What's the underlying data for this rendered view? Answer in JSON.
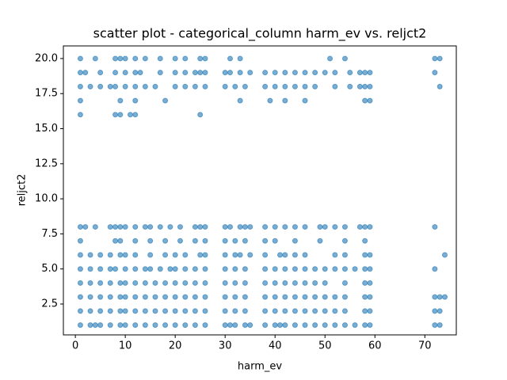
{
  "chart_data": {
    "type": "scatter",
    "title": "scatter plot - categorical_column harm_ev vs. reljct2",
    "xlabel": "harm_ev",
    "ylabel": "reljct2",
    "color": "#1f77b4",
    "xlim": [
      -2.4,
      76.3
    ],
    "ylim": [
      0.3,
      20.9
    ],
    "xticks": [
      0,
      10,
      20,
      30,
      40,
      50,
      60,
      70
    ],
    "yticks": [
      2.5,
      {
        "value": 5,
        "label": "5.0"
      },
      7.5,
      {
        "value": 10,
        "label": "10.0"
      },
      12.5,
      {
        "value": 15,
        "label": "15.0"
      },
      17.5,
      {
        "value": 20,
        "label": "20.0"
      }
    ],
    "x": [
      1,
      4,
      8,
      9,
      10,
      12,
      14,
      17,
      20,
      22,
      25,
      26,
      31,
      33,
      51,
      54,
      72,
      73,
      1,
      2,
      5,
      8,
      10,
      12,
      13,
      17,
      20,
      22,
      24,
      25,
      26,
      30,
      31,
      33,
      35,
      38,
      40,
      42,
      44,
      46,
      48,
      50,
      52,
      55,
      57,
      58,
      59,
      72,
      1,
      3,
      5,
      7,
      8,
      10,
      12,
      14,
      16,
      20,
      22,
      24,
      26,
      30,
      32,
      34,
      38,
      40,
      42,
      44,
      46,
      48,
      52,
      55,
      57,
      58,
      59,
      73,
      1,
      9,
      12,
      18,
      33,
      39,
      42,
      46,
      58,
      59,
      1,
      8,
      9,
      11,
      12,
      25,
      1,
      2,
      4,
      7,
      8,
      9,
      10,
      12,
      14,
      15,
      17,
      19,
      21,
      24,
      25,
      26,
      30,
      31,
      33,
      34,
      35,
      38,
      40,
      42,
      44,
      46,
      49,
      50,
      52,
      54,
      57,
      58,
      59,
      72,
      1,
      8,
      9,
      12,
      15,
      18,
      21,
      24,
      26,
      30,
      32,
      34,
      38,
      40,
      44,
      49,
      54,
      58,
      1,
      3,
      5,
      7,
      9,
      10,
      12,
      15,
      18,
      20,
      22,
      25,
      26,
      30,
      32,
      33,
      35,
      38,
      41,
      42,
      44,
      46,
      52,
      54,
      58,
      59,
      74,
      1,
      3,
      5,
      7,
      8,
      10,
      12,
      14,
      15,
      17,
      19,
      20,
      22,
      24,
      26,
      30,
      32,
      34,
      38,
      40,
      42,
      44,
      46,
      48,
      50,
      52,
      54,
      56,
      58,
      59,
      72,
      1,
      3,
      5,
      7,
      9,
      10,
      12,
      14,
      16,
      18,
      20,
      22,
      24,
      26,
      30,
      32,
      34,
      38,
      40,
      42,
      44,
      46,
      48,
      50,
      54,
      58,
      59,
      1,
      3,
      5,
      7,
      9,
      10,
      12,
      14,
      16,
      18,
      20,
      22,
      24,
      26,
      30,
      32,
      34,
      38,
      40,
      42,
      44,
      46,
      48,
      50,
      52,
      54,
      58,
      59,
      72,
      73,
      74,
      1,
      3,
      5,
      7,
      9,
      10,
      12,
      14,
      16,
      18,
      20,
      22,
      24,
      26,
      30,
      32,
      34,
      38,
      40,
      42,
      44,
      46,
      48,
      50,
      52,
      54,
      58,
      59,
      72,
      73,
      1,
      3,
      4,
      5,
      7,
      9,
      10,
      12,
      14,
      16,
      18,
      20,
      22,
      24,
      26,
      30,
      31,
      32,
      34,
      35,
      38,
      40,
      41,
      42,
      44,
      46,
      48,
      50,
      52,
      54,
      56,
      58,
      59,
      72,
      73
    ],
    "values": [
      20,
      20,
      20,
      20,
      20,
      20,
      20,
      20,
      20,
      20,
      20,
      20,
      20,
      20,
      20,
      20,
      20,
      20,
      19,
      19,
      19,
      19,
      19,
      19,
      19,
      19,
      19,
      19,
      19,
      19,
      19,
      19,
      19,
      19,
      19,
      19,
      19,
      19,
      19,
      19,
      19,
      19,
      19,
      19,
      19,
      19,
      19,
      19,
      18,
      18,
      18,
      18,
      18,
      18,
      18,
      18,
      18,
      18,
      18,
      18,
      18,
      18,
      18,
      18,
      18,
      18,
      18,
      18,
      18,
      18,
      18,
      18,
      18,
      18,
      18,
      18,
      17,
      17,
      17,
      17,
      17,
      17,
      17,
      17,
      17,
      17,
      16,
      16,
      16,
      16,
      16,
      16,
      8,
      8,
      8,
      8,
      8,
      8,
      8,
      8,
      8,
      8,
      8,
      8,
      8,
      8,
      8,
      8,
      8,
      8,
      8,
      8,
      8,
      8,
      8,
      8,
      8,
      8,
      8,
      8,
      8,
      8,
      8,
      8,
      8,
      8,
      7,
      7,
      7,
      7,
      7,
      7,
      7,
      7,
      7,
      7,
      7,
      7,
      7,
      7,
      7,
      7,
      7,
      7,
      6,
      6,
      6,
      6,
      6,
      6,
      6,
      6,
      6,
      6,
      6,
      6,
      6,
      6,
      6,
      6,
      6,
      6,
      6,
      6,
      6,
      6,
      6,
      6,
      6,
      6,
      6,
      5,
      5,
      5,
      5,
      5,
      5,
      5,
      5,
      5,
      5,
      5,
      5,
      5,
      5,
      5,
      5,
      5,
      5,
      5,
      5,
      5,
      5,
      5,
      5,
      5,
      5,
      5,
      5,
      5,
      5,
      5,
      4,
      4,
      4,
      4,
      4,
      4,
      4,
      4,
      4,
      4,
      4,
      4,
      4,
      4,
      4,
      4,
      4,
      4,
      4,
      4,
      4,
      4,
      4,
      4,
      4,
      4,
      4,
      3,
      3,
      3,
      3,
      3,
      3,
      3,
      3,
      3,
      3,
      3,
      3,
      3,
      3,
      3,
      3,
      3,
      3,
      3,
      3,
      3,
      3,
      3,
      3,
      3,
      3,
      3,
      3,
      3,
      3,
      3,
      2,
      2,
      2,
      2,
      2,
      2,
      2,
      2,
      2,
      2,
      2,
      2,
      2,
      2,
      2,
      2,
      2,
      2,
      2,
      2,
      2,
      2,
      2,
      2,
      2,
      2,
      2,
      2,
      2,
      2,
      1,
      1,
      1,
      1,
      1,
      1,
      1,
      1,
      1,
      1,
      1,
      1,
      1,
      1,
      1,
      1,
      1,
      1,
      1,
      1,
      1,
      1,
      1,
      1,
      1,
      1,
      1,
      1,
      1,
      1,
      1,
      1,
      1,
      1,
      1
    ]
  }
}
